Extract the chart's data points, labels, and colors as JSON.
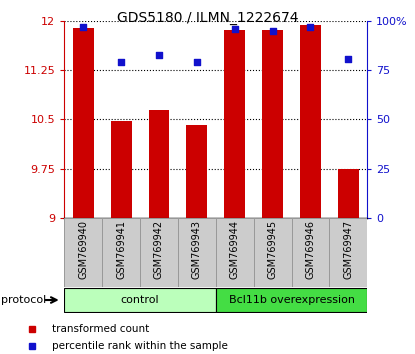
{
  "title": "GDS5180 / ILMN_1222674",
  "samples": [
    "GSM769940",
    "GSM769941",
    "GSM769942",
    "GSM769943",
    "GSM769944",
    "GSM769945",
    "GSM769946",
    "GSM769947"
  ],
  "transformed_count": [
    11.9,
    10.48,
    10.65,
    10.42,
    11.87,
    11.87,
    11.95,
    9.75
  ],
  "percentile_rank": [
    97,
    79,
    83,
    79,
    96,
    95,
    97,
    81
  ],
  "ylim_left": [
    9,
    12
  ],
  "ylim_right": [
    0,
    100
  ],
  "yticks_left": [
    9,
    9.75,
    10.5,
    11.25,
    12
  ],
  "yticks_right": [
    0,
    25,
    50,
    75,
    100
  ],
  "ytick_labels_left": [
    "9",
    "9.75",
    "10.5",
    "11.25",
    "12"
  ],
  "ytick_labels_right": [
    "0",
    "25",
    "50",
    "75",
    "100%"
  ],
  "bar_color": "#cc0000",
  "dot_color": "#1111cc",
  "bar_width": 0.55,
  "groups": [
    {
      "label": "control",
      "indices": [
        0,
        1,
        2,
        3
      ],
      "color": "#bbffbb"
    },
    {
      "label": "Bcl11b overexpression",
      "indices": [
        4,
        5,
        6,
        7
      ],
      "color": "#44dd44"
    }
  ],
  "protocol_label": "protocol",
  "legend_items": [
    {
      "label": "transformed count",
      "color": "#cc0000"
    },
    {
      "label": "percentile rank within the sample",
      "color": "#1111cc"
    }
  ],
  "grid_color": "#000000",
  "left_axis_color": "#cc0000",
  "right_axis_color": "#1111cc",
  "cell_bg_color": "#cccccc",
  "cell_border_color": "#999999"
}
